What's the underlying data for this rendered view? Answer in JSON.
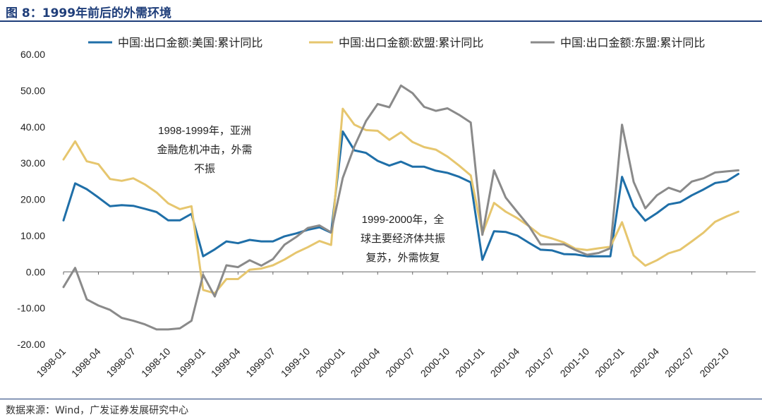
{
  "title": "图 8：1999年前后的外需环境",
  "source": "数据来源：Wind，广发证券发展研究中心",
  "colors": {
    "us": "#1f6fa8",
    "eu": "#e6c66e",
    "asean": "#8a8a8a",
    "accent": "#1f3e7a"
  },
  "chart_data": {
    "type": "line",
    "ylim": [
      -20,
      60
    ],
    "yticks": [
      "60.00",
      "50.00",
      "40.00",
      "30.00",
      "20.00",
      "10.00",
      "0.00",
      "-10.00",
      "-20.00"
    ],
    "xticks": [
      "1998-01",
      "1998-04",
      "1998-07",
      "1998-10",
      "1999-01",
      "1999-04",
      "1999-07",
      "1999-10",
      "2000-01",
      "2000-04",
      "2000-07",
      "2000-10",
      "2001-01",
      "2001-04",
      "2001-07",
      "2001-10",
      "2002-01",
      "2002-04",
      "2002-07",
      "2002-10"
    ],
    "x": [
      "1998-01",
      "1998-02",
      "1998-03",
      "1998-04",
      "1998-05",
      "1998-06",
      "1998-07",
      "1998-08",
      "1998-09",
      "1998-10",
      "1998-11",
      "1998-12",
      "1999-01",
      "1999-02",
      "1999-03",
      "1999-04",
      "1999-05",
      "1999-06",
      "1999-07",
      "1999-08",
      "1999-09",
      "1999-10",
      "1999-11",
      "1999-12",
      "2000-01",
      "2000-02",
      "2000-03",
      "2000-04",
      "2000-05",
      "2000-06",
      "2000-07",
      "2000-08",
      "2000-09",
      "2000-10",
      "2000-11",
      "2000-12",
      "2001-01",
      "2001-02",
      "2001-03",
      "2001-04",
      "2001-05",
      "2001-06",
      "2001-07",
      "2001-08",
      "2001-09",
      "2001-10",
      "2001-11",
      "2001-12",
      "2002-01",
      "2002-02",
      "2002-03",
      "2002-04",
      "2002-05",
      "2002-06",
      "2002-07",
      "2002-08",
      "2002-09",
      "2002-10",
      "2002-11",
      "2002-12"
    ],
    "series": [
      {
        "name": "中国:出口金额:美国:累计同比",
        "color": "#1f6fa8",
        "values": [
          14.2,
          24.4,
          22.8,
          20.5,
          18.1,
          18.4,
          18.2,
          17.4,
          16.5,
          14.2,
          14.2,
          16.0,
          4.3,
          6.2,
          8.4,
          7.9,
          8.8,
          8.4,
          8.4,
          9.8,
          10.6,
          11.6,
          12.3,
          10.8,
          38.7,
          33.5,
          32.8,
          30.6,
          29.3,
          30.4,
          29.0,
          29.0,
          27.9,
          27.3,
          26.2,
          24.7,
          3.3,
          11.2,
          11.0,
          10.0,
          8.0,
          6.1,
          5.9,
          4.9,
          4.8,
          4.3,
          4.3,
          4.3,
          26.2,
          18.0,
          14.1,
          16.2,
          18.6,
          19.2,
          21.1,
          22.7,
          24.5,
          25.0,
          27.0,
          null
        ]
      },
      {
        "name": "中国:出口金额:欧盟:累计同比",
        "color": "#e6c66e",
        "values": [
          31.0,
          36.0,
          30.5,
          29.7,
          25.6,
          25.1,
          25.8,
          24.1,
          21.9,
          18.9,
          17.3,
          18.1,
          -5.0,
          -5.9,
          -2.0,
          -2.0,
          0.6,
          0.9,
          1.8,
          3.4,
          5.3,
          6.8,
          8.5,
          7.4,
          45.0,
          40.6,
          39.1,
          38.9,
          36.4,
          38.5,
          35.8,
          34.4,
          33.7,
          31.8,
          29.3,
          26.6,
          10.5,
          19.0,
          16.6,
          14.8,
          12.6,
          10.1,
          9.2,
          8.1,
          6.4,
          6.0,
          6.5,
          6.9,
          13.7,
          4.5,
          1.7,
          3.2,
          5.1,
          6.1,
          8.4,
          10.8,
          13.8,
          15.3,
          16.6,
          null
        ]
      },
      {
        "name": "中国:出口金额:东盟:累计同比",
        "color": "#8a8a8a",
        "values": [
          -4.2,
          1.1,
          -7.6,
          -9.3,
          -10.5,
          -12.7,
          -13.5,
          -14.5,
          -15.9,
          -15.9,
          -15.6,
          -13.5,
          -0.8,
          -6.8,
          1.8,
          1.3,
          3.2,
          1.7,
          3.5,
          7.5,
          9.6,
          12.1,
          12.8,
          10.9,
          25.9,
          34.6,
          41.6,
          46.3,
          45.4,
          51.4,
          49.3,
          45.5,
          44.4,
          45.1,
          43.3,
          41.2,
          10.2,
          28.0,
          20.5,
          16.5,
          12.6,
          7.6,
          7.6,
          7.6,
          6.0,
          4.7,
          5.2,
          6.5,
          40.6,
          24.8,
          17.5,
          21.1,
          23.2,
          22.1,
          24.9,
          25.8,
          27.4,
          27.7,
          28.0,
          null
        ]
      }
    ],
    "annotations": [
      "1998-1999年，亚洲\n金融危机冲击，外需\n不振",
      "1999-2000年，全\n球主要经济体共振\n复苏，外需恢复"
    ],
    "grid": false,
    "legend": "top"
  }
}
